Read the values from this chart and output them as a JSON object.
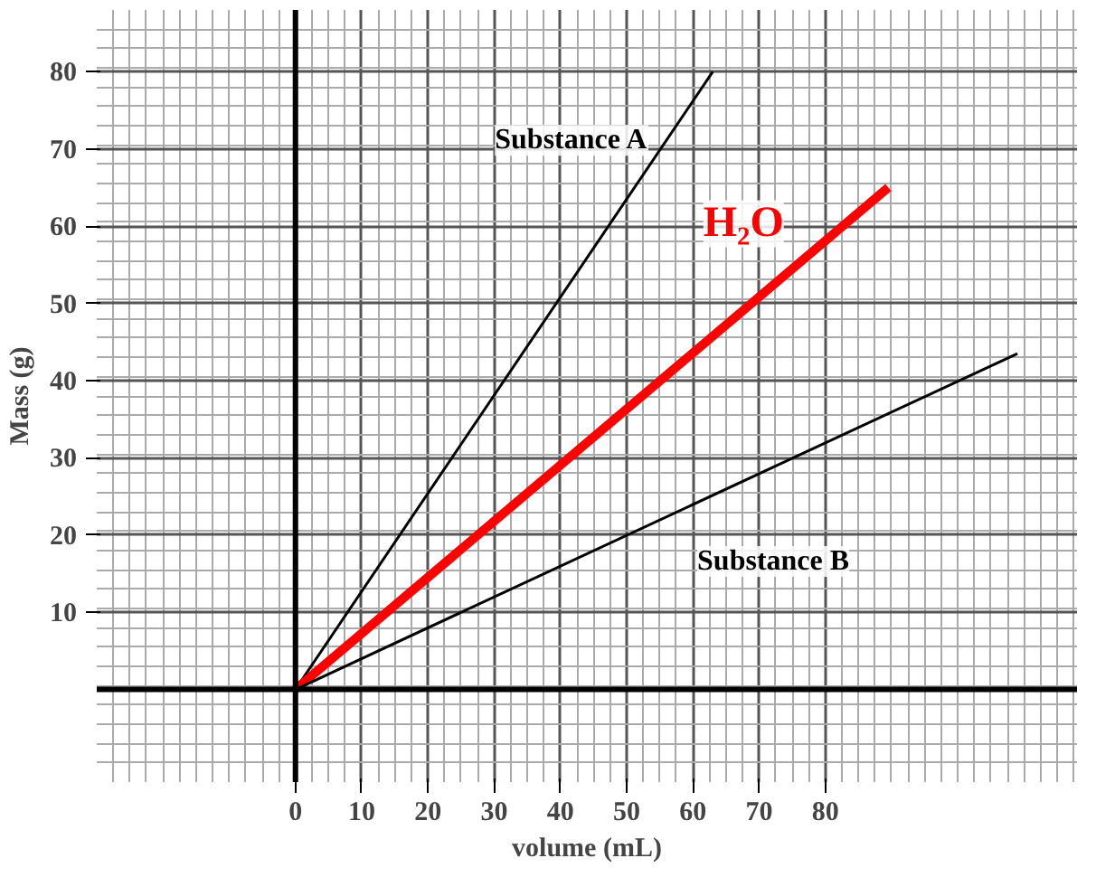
{
  "chart_data": {
    "type": "line",
    "xlabel": "volume (mL)",
    "ylabel": "Mass (g)",
    "xlim": [
      -30,
      118
    ],
    "ylim": [
      -12,
      88
    ],
    "xticks": [
      0,
      10,
      20,
      30,
      40,
      50,
      60,
      70,
      80
    ],
    "yticks": [
      10,
      20,
      30,
      40,
      50,
      60,
      70,
      80
    ],
    "grid": true,
    "series": [
      {
        "name": "Substance A",
        "color": "#000000",
        "x": [
          0,
          63
        ],
        "values": [
          0,
          80
        ]
      },
      {
        "name": "H₂O",
        "color": "#ff0000",
        "x": [
          0,
          89.5
        ],
        "values": [
          0,
          65
        ]
      },
      {
        "name": "Substance B",
        "color": "#000000",
        "x": [
          0,
          109
        ],
        "values": [
          0,
          43.5
        ]
      }
    ]
  }
}
